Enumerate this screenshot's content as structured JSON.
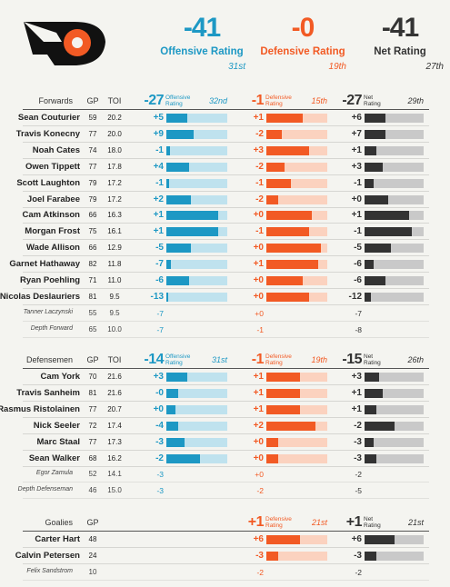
{
  "top": {
    "off": {
      "value": "-41",
      "label": "Offensive Rating",
      "rank": "31st"
    },
    "def": {
      "value": "-0",
      "label": "Defensive Rating",
      "rank": "19th"
    },
    "net": {
      "value": "-41",
      "label": "Net Rating",
      "rank": "27th"
    }
  },
  "sections": [
    {
      "title": "Forwards",
      "gp": "GP",
      "toi": "TOI",
      "off": {
        "value": "-27",
        "label": "Offensive Rating",
        "rank": "32nd"
      },
      "def": {
        "value": "-1",
        "label": "Defensive Rating",
        "rank": "15th"
      },
      "net": {
        "value": "-27",
        "label": "Net Rating",
        "rank": "29th"
      },
      "rows": [
        {
          "name": "Sean Couturier",
          "gp": "59",
          "toi": "20.2",
          "off": "+5",
          "off_bar": 35,
          "def": "+1",
          "def_bar": 60,
          "net": "+6",
          "net_bar": 35
        },
        {
          "name": "Travis Konecny",
          "gp": "77",
          "toi": "20.0",
          "off": "+9",
          "off_bar": 45,
          "def": "-2",
          "def_bar": 25,
          "net": "+7",
          "net_bar": 35
        },
        {
          "name": "Noah Cates",
          "gp": "74",
          "toi": "18.0",
          "off": "-1",
          "off_bar": 6,
          "def": "+3",
          "def_bar": 70,
          "net": "+1",
          "net_bar": 20
        },
        {
          "name": "Owen Tippett",
          "gp": "77",
          "toi": "17.8",
          "off": "+4",
          "off_bar": 38,
          "def": "-2",
          "def_bar": 30,
          "net": "+3",
          "net_bar": 30
        },
        {
          "name": "Scott Laughton",
          "gp": "79",
          "toi": "17.2",
          "off": "-1",
          "off_bar": 5,
          "def": "-1",
          "def_bar": 40,
          "net": "-1",
          "net_bar": 15
        },
        {
          "name": "Joel Farabee",
          "gp": "79",
          "toi": "17.2",
          "off": "+2",
          "off_bar": 40,
          "def": "-2",
          "def_bar": 20,
          "net": "+0",
          "net_bar": 40
        },
        {
          "name": "Cam Atkinson",
          "gp": "66",
          "toi": "16.3",
          "off": "+1",
          "off_bar": 85,
          "def": "+0",
          "def_bar": 75,
          "net": "+1",
          "net_bar": 75
        },
        {
          "name": "Morgan Frost",
          "gp": "75",
          "toi": "16.1",
          "off": "+1",
          "off_bar": 85,
          "def": "-1",
          "def_bar": 70,
          "net": "-1",
          "net_bar": 80
        },
        {
          "name": "Wade Allison",
          "gp": "66",
          "toi": "12.9",
          "off": "-5",
          "off_bar": 40,
          "def": "+0",
          "def_bar": 90,
          "net": "-5",
          "net_bar": 45
        },
        {
          "name": "Garnet Hathaway",
          "gp": "82",
          "toi": "11.8",
          "off": "-7",
          "off_bar": 7,
          "def": "+1",
          "def_bar": 85,
          "net": "-6",
          "net_bar": 15
        },
        {
          "name": "Ryan Poehling",
          "gp": "71",
          "toi": "11.0",
          "off": "-6",
          "off_bar": 37,
          "def": "+0",
          "def_bar": 60,
          "net": "-6",
          "net_bar": 35
        },
        {
          "name": "Nicolas Deslauriers",
          "gp": "81",
          "toi": "9.5",
          "off": "-13",
          "off_bar": 3,
          "def": "+0",
          "def_bar": 70,
          "net": "-12",
          "net_bar": 10
        }
      ],
      "extra": [
        {
          "name": "Tanner Laczynski",
          "gp": "55",
          "toi": "9.5",
          "off": "-7",
          "def": "+0",
          "net": "-7"
        },
        {
          "name": "Depth Forward",
          "gp": "65",
          "toi": "10.0",
          "off": "-7",
          "def": "-1",
          "net": "-8"
        }
      ]
    },
    {
      "title": "Defensemen",
      "gp": "GP",
      "toi": "TOI",
      "off": {
        "value": "-14",
        "label": "Offensive Rating",
        "rank": "31st"
      },
      "def": {
        "value": "-1",
        "label": "Defensive Rating",
        "rank": "19th"
      },
      "net": {
        "value": "-15",
        "label": "Net Rating",
        "rank": "26th"
      },
      "rows": [
        {
          "name": "Cam York",
          "gp": "70",
          "toi": "21.6",
          "off": "+3",
          "off_bar": 35,
          "def": "+1",
          "def_bar": 55,
          "net": "+3",
          "net_bar": 25
        },
        {
          "name": "Travis Sanheim",
          "gp": "81",
          "toi": "21.6",
          "off": "-0",
          "off_bar": 20,
          "def": "+1",
          "def_bar": 55,
          "net": "+1",
          "net_bar": 30
        },
        {
          "name": "Rasmus Ristolainen",
          "gp": "77",
          "toi": "20.7",
          "off": "+0",
          "off_bar": 15,
          "def": "+1",
          "def_bar": 55,
          "net": "+1",
          "net_bar": 20
        },
        {
          "name": "Nick Seeler",
          "gp": "72",
          "toi": "17.4",
          "off": "-4",
          "off_bar": 20,
          "def": "+2",
          "def_bar": 80,
          "net": "-2",
          "net_bar": 50
        },
        {
          "name": "Marc Staal",
          "gp": "77",
          "toi": "17.3",
          "off": "-3",
          "off_bar": 30,
          "def": "+0",
          "def_bar": 20,
          "net": "-3",
          "net_bar": 15
        },
        {
          "name": "Sean Walker",
          "gp": "68",
          "toi": "16.2",
          "off": "-2",
          "off_bar": 55,
          "def": "+0",
          "def_bar": 20,
          "net": "-3",
          "net_bar": 20
        }
      ],
      "extra": [
        {
          "name": "Egor Zamula",
          "gp": "52",
          "toi": "14.1",
          "off": "-3",
          "def": "+0",
          "net": "-2"
        },
        {
          "name": "Depth Defenseman",
          "gp": "46",
          "toi": "15.0",
          "off": "-3",
          "def": "-2",
          "net": "-5"
        }
      ]
    },
    {
      "title": "Goalies",
      "gp": "GP",
      "def": {
        "value": "+1",
        "label": "Defensive Rating",
        "rank": "21st"
      },
      "net": {
        "value": "+1",
        "label": "Net Rating",
        "rank": "21st"
      },
      "rows": [
        {
          "name": "Carter Hart",
          "gp": "48",
          "def": "+6",
          "def_bar": 55,
          "net": "+6",
          "net_bar": 50
        },
        {
          "name": "Calvin Petersen",
          "gp": "24",
          "def": "-3",
          "def_bar": 20,
          "net": "-3",
          "net_bar": 20
        }
      ],
      "extra": [
        {
          "name": "Felix Sandstrom",
          "gp": "10",
          "def": "-2",
          "net": "-2"
        }
      ]
    }
  ]
}
